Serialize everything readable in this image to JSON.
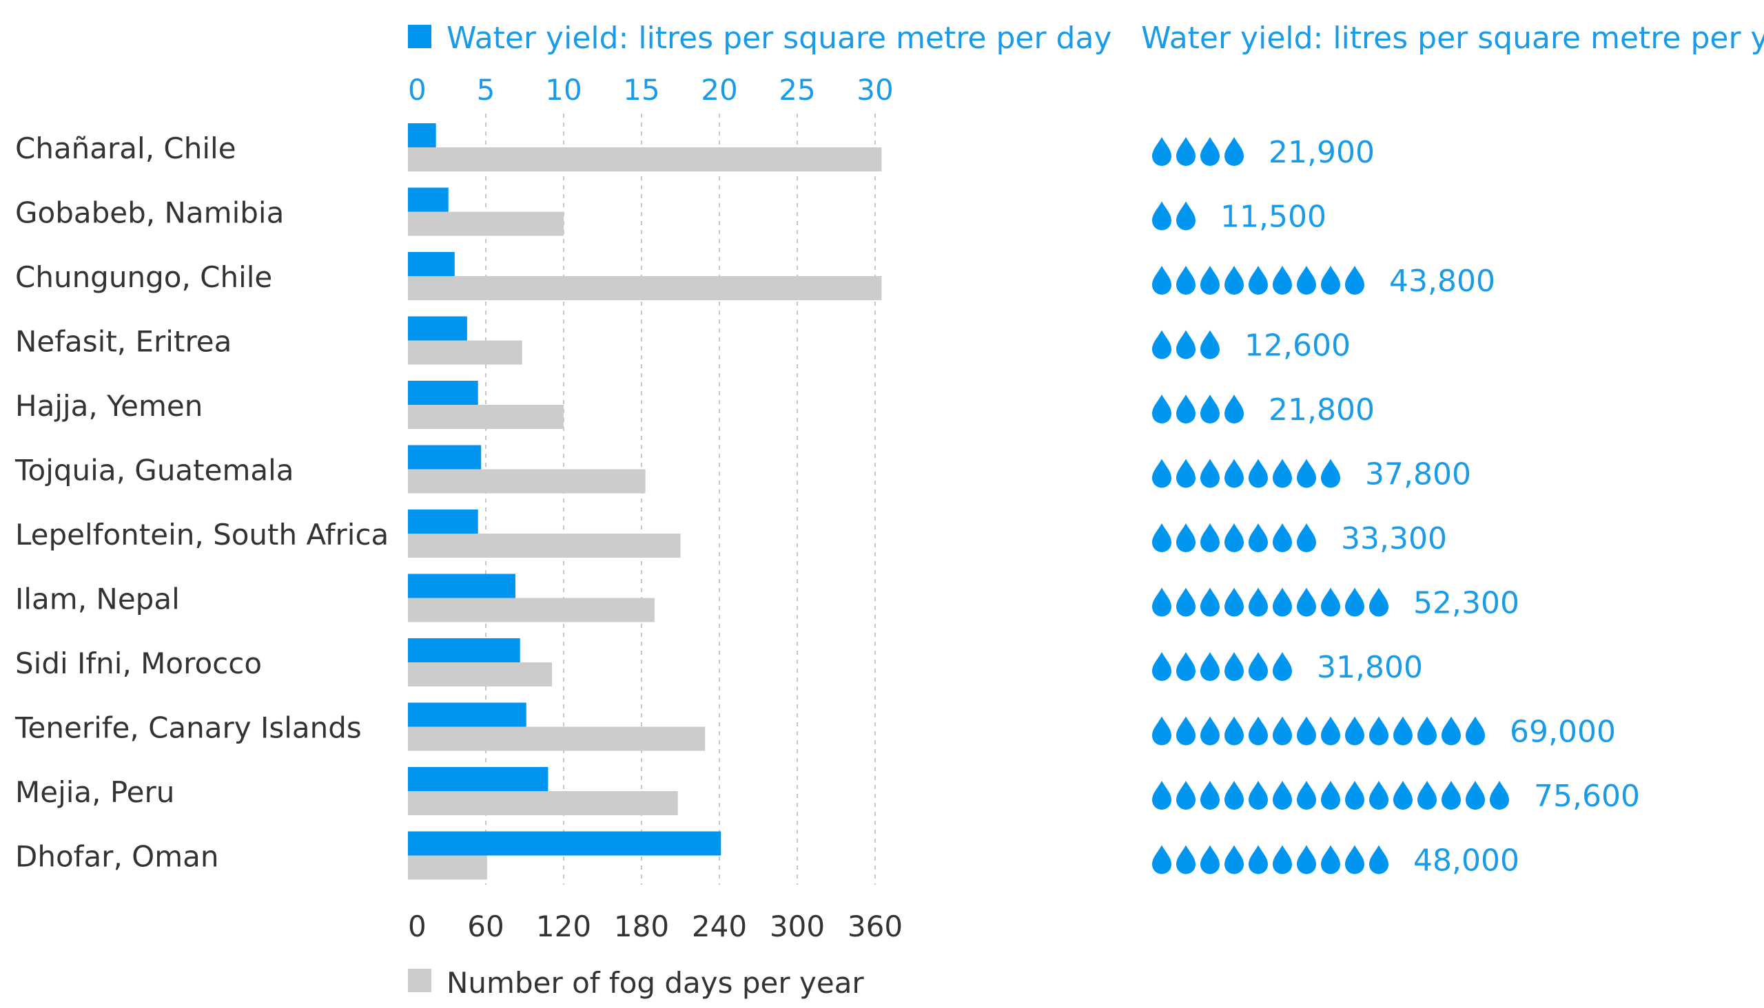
{
  "chart_data": {
    "type": "bar",
    "categories": [
      "Chañaral, Chile",
      "Gobabeb, Namibia",
      "Chungungo, Chile",
      "Nefasit, Eritrea",
      "Hajja, Yemen",
      "Tojquia, Guatemala",
      "Lepelfontein, South Africa",
      "Ilam, Nepal",
      "Sidi Ifni, Morocco",
      "Tenerife, Canary Islands",
      "Mejia, Peru",
      "Dhofar, Oman"
    ],
    "series": [
      {
        "name": "Water yield: litres per square metre per day",
        "axis": "top",
        "color": "#0096f0",
        "values": [
          1.8,
          2.6,
          3.0,
          3.8,
          4.5,
          4.7,
          4.5,
          6.9,
          7.2,
          7.6,
          9.0,
          20.1
        ]
      },
      {
        "name": "Number of fog days per year",
        "axis": "bottom",
        "color": "#cccccc",
        "values": [
          365,
          120,
          365,
          88,
          120,
          183,
          210,
          190,
          111,
          229,
          208,
          61
        ]
      }
    ],
    "top_axis": {
      "ticks": [
        0,
        5,
        10,
        15,
        20,
        25,
        30
      ],
      "range": [
        0,
        30
      ]
    },
    "bottom_axis": {
      "ticks": [
        0,
        60,
        120,
        180,
        240,
        300,
        360
      ],
      "range": [
        0,
        360
      ]
    },
    "grid": true,
    "legend": {
      "top": "Water yield: litres per square metre per day",
      "bottom": "Number of fog days per year"
    },
    "right_panel": {
      "title": "Water yield: litres per square metre per year",
      "drop_color": "#0096f0",
      "drop_counts": [
        4,
        2,
        9,
        3,
        4,
        8,
        7,
        10,
        6,
        14,
        15,
        10
      ],
      "values": [
        "21,900",
        "11,500",
        "43,800",
        "12,600",
        "21,800",
        "37,800",
        "33,300",
        "52,300",
        "31,800",
        "69,000",
        "75,600",
        "48,000"
      ]
    }
  }
}
